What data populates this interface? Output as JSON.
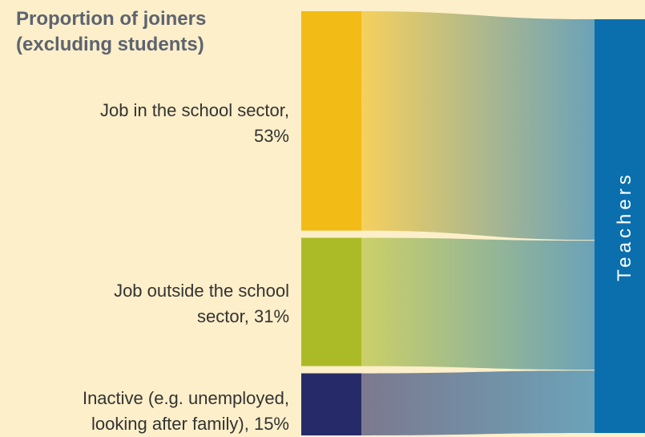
{
  "chart_data": {
    "type": "sankey",
    "title_lines": [
      "Proportion of joiners",
      "(excluding students)"
    ],
    "sources": [
      {
        "label_lines": [
          "Job in the school sector,",
          "53%"
        ],
        "value": 53,
        "color": "#f2bb16"
      },
      {
        "label_lines": [
          "Job outside the school",
          "sector, 31%"
        ],
        "value": 31,
        "color": "#abbb27"
      },
      {
        "label_lines": [
          "Inactive (e.g. unemployed,",
          "looking after family), 15%"
        ],
        "value": 15,
        "color": "#262a68"
      }
    ],
    "target": {
      "label": "Teachers",
      "color": "#0b6fad"
    }
  }
}
